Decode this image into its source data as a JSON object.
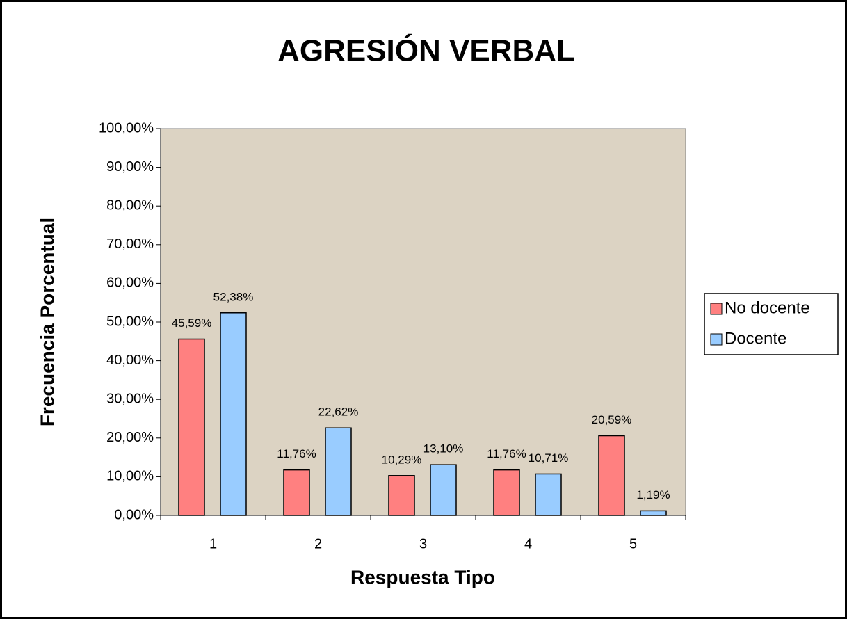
{
  "chart_data": {
    "type": "bar",
    "title": "AGRESIÓN VERBAL",
    "x_label": "Respuesta Tipo",
    "y_label": "Frecuencia Porcentual",
    "categories": [
      "1",
      "2",
      "3",
      "4",
      "5"
    ],
    "series": [
      {
        "name": "No docente",
        "color": "#ff8080",
        "values": [
          45.59,
          11.76,
          10.29,
          11.76,
          20.59
        ],
        "value_labels": [
          "45,59%",
          "11,76%",
          "10,29%",
          "11,76%",
          "20,59%"
        ]
      },
      {
        "name": "Docente",
        "color": "#99ccff",
        "values": [
          52.38,
          22.62,
          13.1,
          10.71,
          1.19
        ],
        "value_labels": [
          "52,38%",
          "22,62%",
          "13,10%",
          "10,71%",
          "1,19%"
        ]
      }
    ],
    "ylim": [
      0,
      100
    ],
    "yticks": [
      {
        "value": 0,
        "label": "0,00%"
      },
      {
        "value": 10,
        "label": "10,00%"
      },
      {
        "value": 20,
        "label": "20,00%"
      },
      {
        "value": 30,
        "label": "30,00%"
      },
      {
        "value": 40,
        "label": "40,00%"
      },
      {
        "value": 50,
        "label": "50,00%"
      },
      {
        "value": 60,
        "label": "60,00%"
      },
      {
        "value": 70,
        "label": "70,00%"
      },
      {
        "value": 80,
        "label": "80,00%"
      },
      {
        "value": 90,
        "label": "90,00%"
      },
      {
        "value": 100,
        "label": "100,00%"
      }
    ],
    "grid": false,
    "legend": "right",
    "plot_background": "#dcd3c3"
  }
}
